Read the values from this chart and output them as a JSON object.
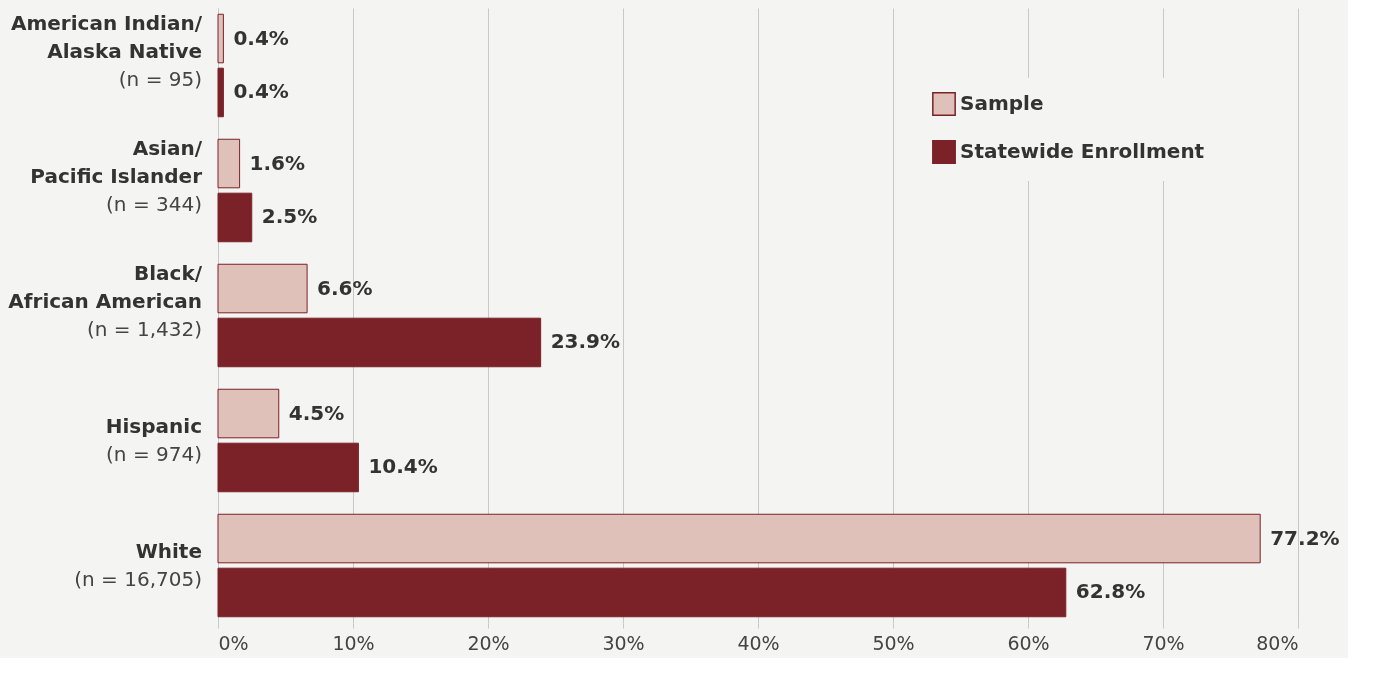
{
  "chart_data": {
    "type": "bar",
    "orientation": "horizontal",
    "categories": [
      "American Indian/\nAlaska Native\n(n = 95)",
      "Asian/\nPacific Islander\n(n = 344)",
      "Black/\nAfrican American\n(n = 1,432)",
      "Hispanic\n(n = 974)",
      "White\n(n = 16,705)"
    ],
    "series": [
      {
        "name": "Sample",
        "color": "#dfc1ba",
        "values": [
          0.4,
          1.6,
          6.6,
          4.5,
          77.2
        ],
        "value_labels": [
          "0.4%",
          "1.6%",
          "6.6%",
          "4.5%",
          "77.2%"
        ]
      },
      {
        "name": "Statewide Enrollment",
        "color": "#7b2229",
        "values": [
          0.4,
          2.5,
          23.9,
          10.4,
          62.8
        ],
        "value_labels": [
          "0.4%",
          "2.5%",
          "23.9%",
          "10.4%",
          "62.8%"
        ]
      }
    ],
    "xlim": [
      0,
      80
    ],
    "xticks": [
      {
        "value": 0,
        "label": "0%"
      },
      {
        "value": 10,
        "label": "10%"
      },
      {
        "value": 20,
        "label": "20%"
      },
      {
        "value": 30,
        "label": "30%"
      },
      {
        "value": 40,
        "label": "40%"
      },
      {
        "value": 50,
        "label": "50%"
      },
      {
        "value": 60,
        "label": "60%"
      },
      {
        "value": 70,
        "label": "70%"
      },
      {
        "value": 80,
        "label": "80%"
      }
    ],
    "grid": "x",
    "legend": "top right"
  }
}
